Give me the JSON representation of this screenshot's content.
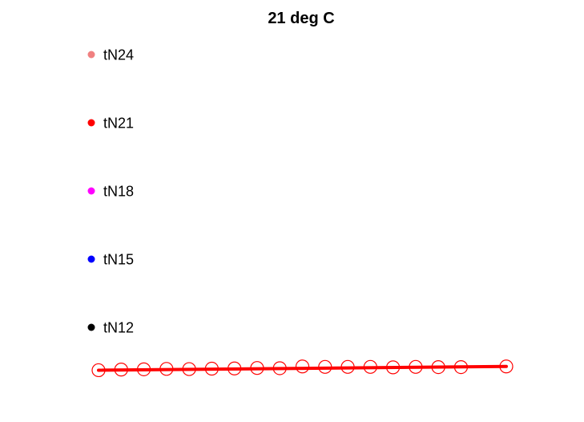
{
  "chart_data": {
    "type": "line",
    "title": "21 deg C",
    "xlabel": "",
    "ylabel": "",
    "axes_visible": false,
    "grid": false,
    "legend": {
      "placement": "left",
      "marker": "dot",
      "entries": [
        {
          "label": "tN24",
          "color": "#f08080"
        },
        {
          "label": "tN21",
          "color": "#ff0000"
        },
        {
          "label": "tN18",
          "color": "#ff00ff"
        },
        {
          "label": "tN15",
          "color": "#0000ff"
        },
        {
          "label": "tN12",
          "color": "#000000"
        }
      ]
    },
    "series": [
      {
        "color": "#ff0000",
        "line_style": "solid",
        "marker": "open-circle",
        "x": [
          1,
          2,
          3,
          4,
          5,
          6,
          7,
          8,
          9,
          10,
          11,
          12,
          13,
          14,
          15,
          16,
          17,
          19
        ],
        "values": [
          0.1,
          0.25,
          0.3,
          0.4,
          0.35,
          0.45,
          0.5,
          0.6,
          0.55,
          0.95,
          0.85,
          0.85,
          0.85,
          0.75,
          0.85,
          0.8,
          0.8,
          0.95
        ]
      }
    ],
    "xlim": [
      1,
      19
    ],
    "ylim": [
      0,
      1
    ]
  }
}
